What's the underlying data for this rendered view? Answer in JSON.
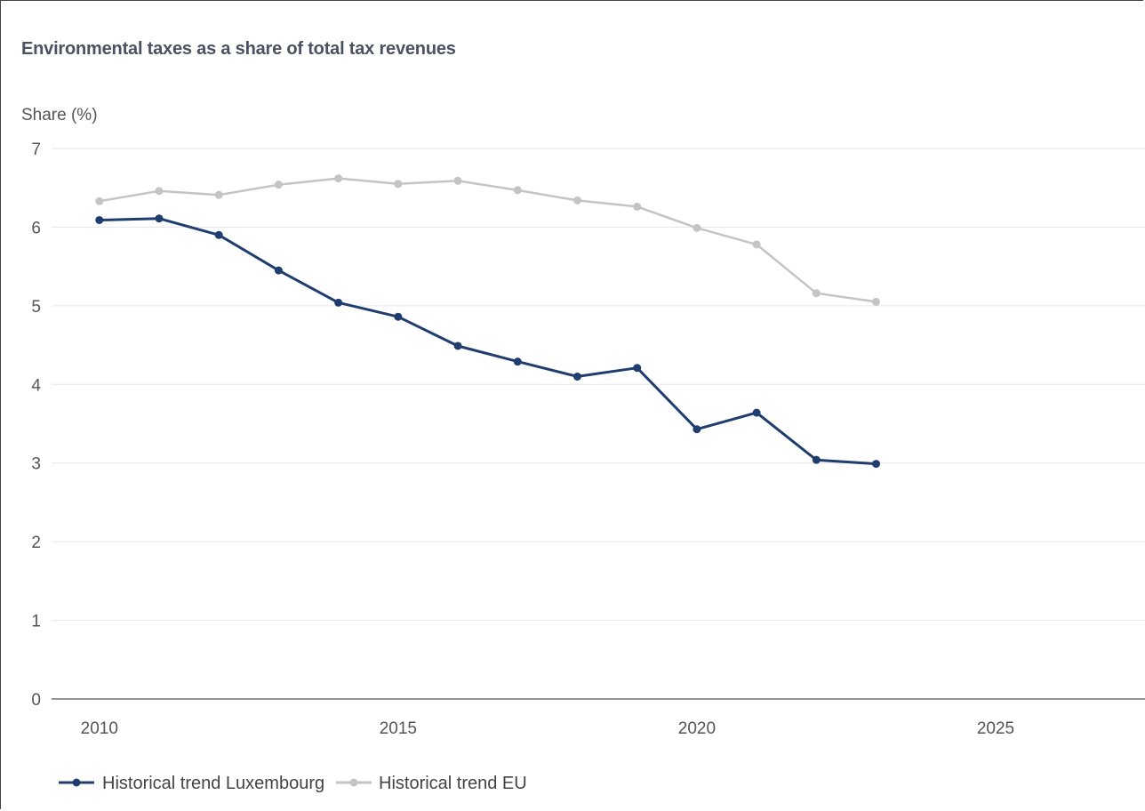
{
  "chart_data": {
    "type": "line",
    "title": "Environmental taxes as a share of total tax revenues",
    "ylabel": "Share (%)",
    "xlabel": "",
    "xlim": [
      2009.2,
      2027.5
    ],
    "ylim": [
      0,
      7
    ],
    "yticks": [
      "0",
      "1",
      "2",
      "3",
      "4",
      "5",
      "6",
      "7"
    ],
    "xticks": [
      "2010",
      "2015",
      "2020",
      "2025"
    ],
    "grid": "horizontal",
    "legend_position": "bottom-left",
    "series": [
      {
        "name": "Historical trend Luxembourg",
        "color": "#1f3d6e",
        "x": [
          2010,
          2011,
          2012,
          2013,
          2014,
          2015,
          2016,
          2017,
          2018,
          2019,
          2020,
          2021,
          2022,
          2023
        ],
        "values": [
          6.09,
          6.11,
          5.9,
          5.45,
          5.04,
          4.86,
          4.49,
          4.29,
          4.1,
          4.21,
          3.43,
          3.64,
          3.04,
          2.99
        ]
      },
      {
        "name": "Historical trend EU",
        "color": "#c4c4c4",
        "x": [
          2010,
          2011,
          2012,
          2013,
          2014,
          2015,
          2016,
          2017,
          2018,
          2019,
          2020,
          2021,
          2022,
          2023
        ],
        "values": [
          6.33,
          6.46,
          6.41,
          6.54,
          6.62,
          6.55,
          6.59,
          6.47,
          6.34,
          6.26,
          5.99,
          5.78,
          5.16,
          5.05
        ]
      }
    ]
  }
}
